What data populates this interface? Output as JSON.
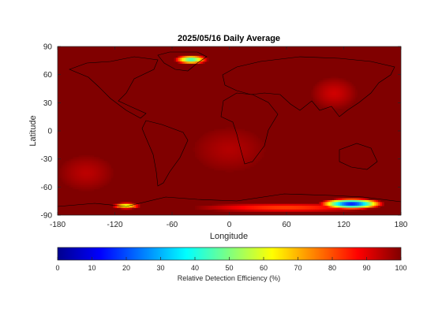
{
  "chart_data": {
    "type": "heatmap",
    "title": "2025/05/16 Daily Average",
    "xlabel": "Longitude",
    "ylabel": "Latitude",
    "xlim": [
      -180,
      180
    ],
    "ylim": [
      -90,
      90
    ],
    "xticks": [
      -180,
      -120,
      -60,
      0,
      60,
      120,
      180
    ],
    "yticks": [
      -90,
      -60,
      -30,
      0,
      30,
      60,
      90
    ],
    "background_value": 100,
    "colormap": "jet",
    "colors": {
      "jet": [
        "#00008f",
        "#0000ff",
        "#00ffff",
        "#ffff00",
        "#ff0000",
        "#800000"
      ]
    },
    "regions": [
      {
        "name": "Greenland",
        "lon": -40,
        "lat": 76,
        "rx": 18,
        "ry": 5,
        "min": 40
      },
      {
        "name": "Antarctica East",
        "lon": 128,
        "lat": -78,
        "rx": 35,
        "ry": 6,
        "min": 10
      },
      {
        "name": "Antarctica West",
        "lon": -108,
        "lat": -80,
        "rx": 15,
        "ry": 3.5,
        "min": 55
      },
      {
        "name": "Antarctic coast",
        "lon": 60,
        "lat": -82,
        "rx": 100,
        "ry": 5,
        "min": 80
      },
      {
        "name": "Asia",
        "lon": 110,
        "lat": 40,
        "rx": 25,
        "ry": 18,
        "min": 92
      },
      {
        "name": "Atlantic",
        "lon": 0,
        "lat": -20,
        "rx": 40,
        "ry": 25,
        "min": 95
      },
      {
        "name": "Pacific",
        "lon": -150,
        "lat": -45,
        "rx": 30,
        "ry": 20,
        "min": 94
      }
    ],
    "colorbar": {
      "ticks": [
        0,
        10,
        20,
        30,
        40,
        50,
        60,
        70,
        80,
        90,
        100
      ],
      "label": "Relative Detection Efficiency (%)",
      "range": [
        0,
        100
      ]
    }
  }
}
